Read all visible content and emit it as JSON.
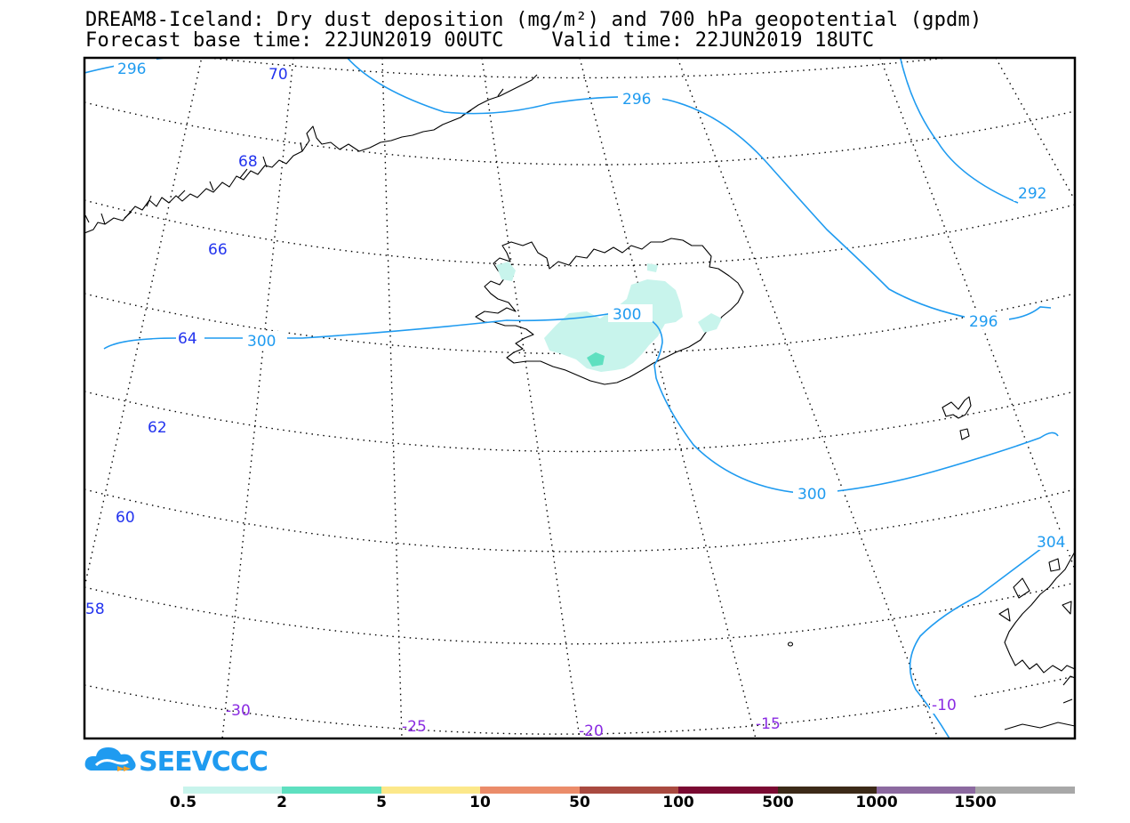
{
  "title": {
    "line1": "DREAM8-Iceland: Dry dust deposition (mg/m²) and 700 hPa geopotential (gpdm)",
    "line2": "Forecast base time: 22JUN2019 00UTC    Valid time: 22JUN2019 18UTC"
  },
  "map_data": {
    "region": "Iceland and North Atlantic",
    "latitude_labels": [
      "70",
      "68",
      "66",
      "64",
      "62",
      "60",
      "58"
    ],
    "longitude_labels": [
      "-30",
      "-25",
      "-20",
      "-15",
      "-10"
    ],
    "contour_labels": [
      "296",
      "296",
      "292",
      "296",
      "300",
      "300",
      "300",
      "304"
    ],
    "colors": {
      "contour": "#1f9bf0",
      "lat_label": "#2233ee",
      "lon_label": "#8a2be2",
      "dust_light": "#c8f4ec",
      "dust_medium": "#5ee0c0"
    }
  },
  "logo": {
    "text": "SEEVCCC",
    "icon": "cloud-icon",
    "color": "#1f9bf0"
  },
  "colorbar": {
    "colors": [
      "#c8f4ec",
      "#5ee0c0",
      "#fce88a",
      "#eb8c6a",
      "#a94a40",
      "#7a0a32",
      "#3c2a18",
      "#8c6aa0",
      "#a8a8a8"
    ],
    "labels": [
      "0.5",
      "2",
      "5",
      "10",
      "50",
      "100",
      "500",
      "1000",
      "1500"
    ]
  }
}
